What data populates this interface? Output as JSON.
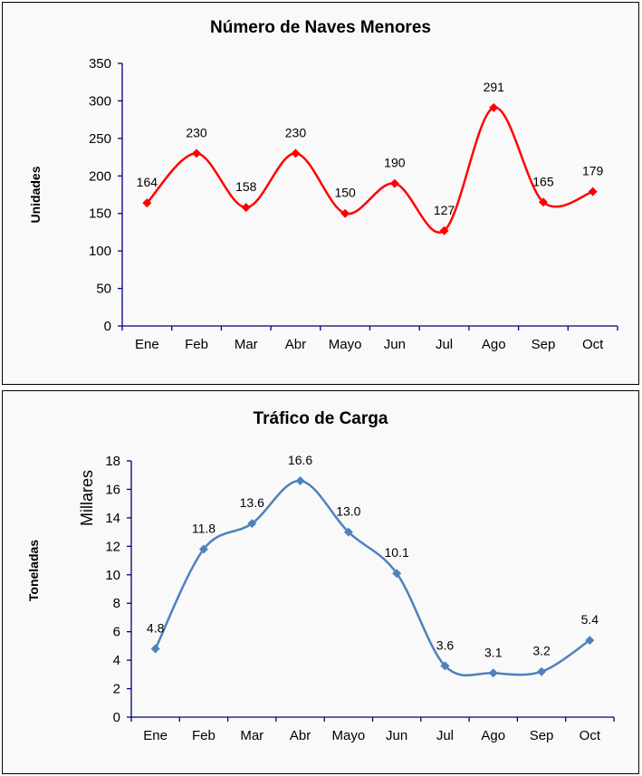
{
  "chart_data": [
    {
      "type": "line",
      "title": "Número de Naves Menores",
      "xlabel": "",
      "ylabel": "Unidades",
      "categories": [
        "Ene",
        "Feb",
        "Mar",
        "Abr",
        "Mayo",
        "Jun",
        "Jul",
        "Ago",
        "Sep",
        "Oct"
      ],
      "values": [
        164,
        230,
        158,
        230,
        150,
        190,
        127,
        291,
        165,
        179
      ],
      "data_labels": [
        "164",
        "230",
        "158",
        "230",
        "150",
        "190",
        "127",
        "291",
        "165",
        "179"
      ],
      "ylim": [
        0,
        350
      ],
      "yticks": [
        0,
        50,
        100,
        150,
        200,
        250,
        300,
        350
      ],
      "color": "#ff0000",
      "grid": false,
      "smooth": true
    },
    {
      "type": "line",
      "title": "Tráfico de Carga",
      "xlabel": "",
      "ylabel": "Toneladas",
      "yunit_label": "Millares",
      "categories": [
        "Ene",
        "Feb",
        "Mar",
        "Abr",
        "Mayo",
        "Jun",
        "Jul",
        "Ago",
        "Sep",
        "Oct"
      ],
      "values": [
        4.8,
        11.8,
        13.6,
        16.6,
        13.0,
        10.1,
        3.6,
        3.1,
        3.2,
        5.4
      ],
      "data_labels": [
        "4.8",
        "11.8",
        "13.6",
        "16.6",
        "13.0",
        "10.1",
        "3.6",
        "3.1",
        "3.2",
        "5.4"
      ],
      "ylim": [
        0,
        18
      ],
      "yticks": [
        0,
        2,
        4,
        6,
        8,
        10,
        12,
        14,
        16,
        18
      ],
      "color": "#4f81bd",
      "grid": false,
      "smooth": true
    }
  ]
}
